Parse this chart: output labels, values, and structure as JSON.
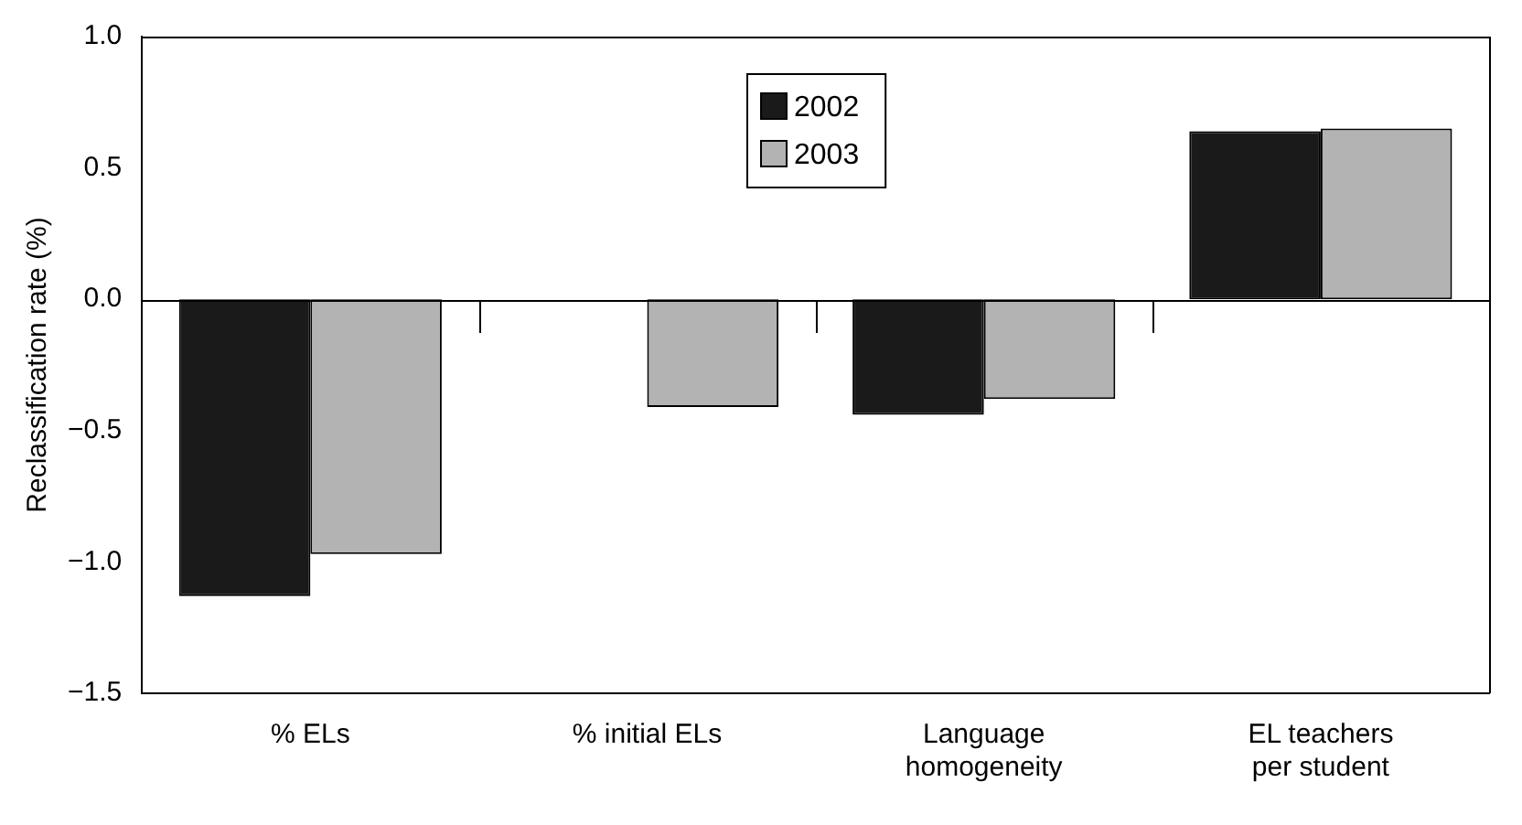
{
  "chart_data": {
    "type": "bar",
    "ylabel": "Reclassification rate (%)",
    "categories": [
      "% ELs",
      "% initial ELs",
      "Language\nhomogeneity",
      "EL teachers\nper student"
    ],
    "series": [
      {
        "name": "2002",
        "color": "#1a1a1a",
        "values": [
          -1.13,
          null,
          -0.44,
          0.64
        ]
      },
      {
        "name": "2003",
        "color": "#b3b3b3",
        "values": [
          -0.97,
          -0.41,
          -0.38,
          0.65
        ]
      }
    ],
    "ylim": [
      -1.5,
      1.0
    ],
    "yticks": [
      {
        "value": -1.5,
        "label": "−1.5"
      },
      {
        "value": -1.0,
        "label": "−1.0"
      },
      {
        "value": -0.5,
        "label": "−0.5"
      },
      {
        "value": 0,
        "label": "0.0"
      },
      {
        "value": 0.5,
        "label": "0.5"
      },
      {
        "value": 1.0,
        "label": "1.0"
      }
    ],
    "ref_lines": [
      {
        "axis": "y",
        "value": 0,
        "color": "#000000"
      }
    ],
    "grid": false,
    "legend": "top"
  }
}
